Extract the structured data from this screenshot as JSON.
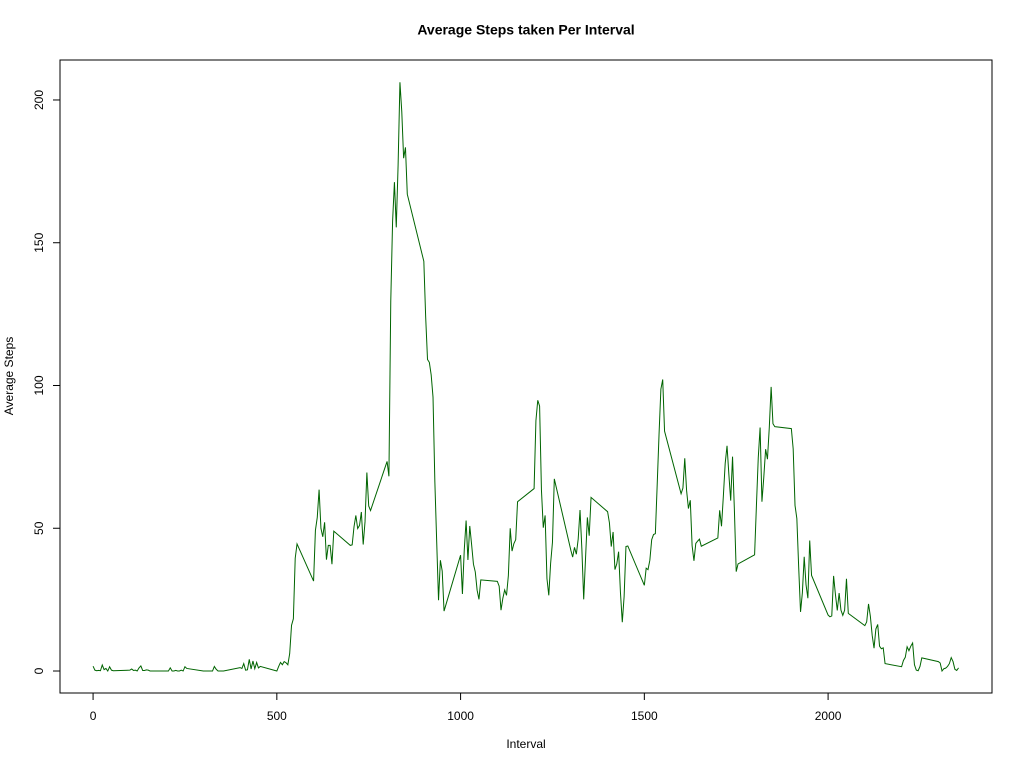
{
  "chart_data": {
    "type": "line",
    "title": "Average Steps taken Per Interval",
    "x_label": "Interval",
    "y_label": "Average Steps",
    "color": "#006400",
    "xlim": [
      -90,
      2446
    ],
    "ylim": [
      -7.7,
      214
    ],
    "xticks": [
      0,
      500,
      1000,
      1500,
      2000
    ],
    "yticks": [
      0,
      50,
      100,
      150,
      200
    ],
    "x": [
      0,
      5,
      10,
      15,
      20,
      25,
      30,
      35,
      40,
      45,
      50,
      55,
      100,
      105,
      110,
      115,
      120,
      125,
      130,
      135,
      140,
      145,
      150,
      155,
      200,
      205,
      210,
      215,
      220,
      225,
      230,
      235,
      240,
      245,
      250,
      255,
      300,
      305,
      310,
      315,
      320,
      325,
      330,
      335,
      340,
      345,
      350,
      355,
      400,
      405,
      410,
      415,
      420,
      425,
      430,
      435,
      440,
      445,
      450,
      455,
      500,
      505,
      510,
      515,
      520,
      525,
      530,
      535,
      540,
      545,
      550,
      555,
      600,
      605,
      610,
      615,
      620,
      625,
      630,
      635,
      640,
      645,
      650,
      655,
      700,
      705,
      710,
      715,
      720,
      725,
      730,
      735,
      740,
      745,
      750,
      755,
      800,
      805,
      810,
      815,
      820,
      825,
      830,
      835,
      840,
      845,
      850,
      855,
      900,
      905,
      910,
      915,
      920,
      925,
      930,
      935,
      940,
      945,
      950,
      955,
      1000,
      1005,
      1010,
      1015,
      1020,
      1025,
      1030,
      1035,
      1040,
      1045,
      1050,
      1055,
      1100,
      1105,
      1110,
      1115,
      1120,
      1125,
      1130,
      1135,
      1140,
      1145,
      1150,
      1155,
      1200,
      1205,
      1210,
      1215,
      1220,
      1225,
      1230,
      1235,
      1240,
      1245,
      1250,
      1255,
      1300,
      1305,
      1310,
      1315,
      1320,
      1325,
      1330,
      1335,
      1340,
      1345,
      1350,
      1355,
      1400,
      1405,
      1410,
      1415,
      1420,
      1425,
      1430,
      1435,
      1440,
      1445,
      1450,
      1455,
      1500,
      1505,
      1510,
      1515,
      1520,
      1525,
      1530,
      1535,
      1540,
      1545,
      1550,
      1555,
      1600,
      1605,
      1610,
      1615,
      1620,
      1625,
      1630,
      1635,
      1640,
      1645,
      1650,
      1655,
      1700,
      1705,
      1710,
      1715,
      1720,
      1725,
      1730,
      1735,
      1740,
      1745,
      1750,
      1755,
      1800,
      1805,
      1810,
      1815,
      1820,
      1825,
      1830,
      1835,
      1840,
      1845,
      1850,
      1855,
      1900,
      1905,
      1910,
      1915,
      1920,
      1925,
      1930,
      1935,
      1940,
      1945,
      1950,
      1955,
      2000,
      2005,
      2010,
      2015,
      2020,
      2025,
      2030,
      2035,
      2040,
      2045,
      2050,
      2055,
      2100,
      2105,
      2110,
      2115,
      2120,
      2125,
      2130,
      2135,
      2140,
      2145,
      2150,
      2155,
      2200,
      2205,
      2210,
      2215,
      2220,
      2225,
      2230,
      2235,
      2240,
      2245,
      2250,
      2255,
      2300,
      2305,
      2310,
      2315,
      2320,
      2325,
      2330,
      2335,
      2340,
      2345,
      2350,
      2355
    ],
    "values": [
      1.7,
      0.3,
      0.1,
      0.2,
      0.1,
      2.1,
      0.5,
      0.9,
      0,
      1.5,
      0.3,
      0.1,
      0.3,
      0.7,
      0.2,
      0.3,
      0,
      1.1,
      1.8,
      0.2,
      0.2,
      0.4,
      0.3,
      0,
      0,
      0,
      1.1,
      0,
      0,
      0.2,
      0,
      0,
      0.3,
      0,
      1.5,
      0.9,
      0,
      0,
      0,
      0,
      0,
      0,
      1.6,
      0.6,
      0,
      0,
      0,
      0,
      1.2,
      0.9,
      2.6,
      0.3,
      0.4,
      4.1,
      0.7,
      3.5,
      0.8,
      3.0,
      1.1,
      1.6,
      0,
      1.6,
      3.0,
      2.2,
      3.3,
      2.9,
      2.2,
      6.1,
      16,
      18.3,
      39.5,
      44.5,
      31.5,
      49.3,
      53.8,
      63.5,
      50,
      47,
      52.1,
      39,
      44,
      44,
      37.4,
      49,
      44,
      44.2,
      50.5,
      54.5,
      49.9,
      51,
      55.7,
      44.3,
      52.3,
      69.5,
      57.8,
      56.2,
      73.4,
      68.2,
      129.4,
      157.5,
      171.2,
      155.4,
      177.3,
      206.2,
      195.9,
      179.6,
      183.4,
      167,
      143.5,
      124,
      109.1,
      108.1,
      103.7,
      95.9,
      66.2,
      45.2,
      24.8,
      38.8,
      35,
      21,
      40.6,
      27,
      42.4,
      52.7,
      38.9,
      50.8,
      44.3,
      37.4,
      34.7,
      28.3,
      25.1,
      31.9,
      31.4,
      29.7,
      21.3,
      25.5,
      28.4,
      26.5,
      33.4,
      50,
      42,
      44.6,
      46,
      59.3,
      63.9,
      87.7,
      94.8,
      92.8,
      63.4,
      50.2,
      54.5,
      32.4,
      26.5,
      37.7,
      45.1,
      67.3,
      42.3,
      39.9,
      43.3,
      40.9,
      46.2,
      56.4,
      42.8,
      25.1,
      39.5,
      53.8,
      47.4,
      60.8,
      55.8,
      51.9,
      43.6,
      48.7,
      35.5,
      37.5,
      41.8,
      27.5,
      17.1,
      26.1,
      43.6,
      43.8,
      30,
      36,
      35.5,
      38.8,
      46,
      47.8,
      48.1,
      65.3,
      82.9,
      98.7,
      102.1,
      84,
      62.1,
      64.1,
      74.5,
      63.2,
      56.9,
      59.8,
      43.9,
      38.6,
      44.7,
      45.5,
      46.2,
      43.7,
      46.6,
      56.3,
      50.7,
      61.2,
      72.7,
      78.9,
      68.9,
      59.7,
      75.1,
      56.5,
      34.8,
      37.5,
      40.7,
      58,
      74.7,
      85.3,
      59.3,
      67.8,
      77.7,
      74.2,
      85.3,
      99.5,
      86.6,
      85.6,
      84.9,
      77.8,
      58,
      53.4,
      36.3,
      20.7,
      27.4,
      40,
      30.2,
      25.5,
      45.7,
      33.5,
      19.6,
      19,
      19.3,
      33.3,
      26.8,
      21.2,
      27.3,
      21.3,
      19.5,
      21.3,
      32.3,
      20.2,
      15.9,
      17.2,
      23.5,
      19.2,
      12.5,
      8,
      14.7,
      16.3,
      8.7,
      7.8,
      8.1,
      2.6,
      1.5,
      3.7,
      4.8,
      8.5,
      7.1,
      8.7,
      9.8,
      2.2,
      0.3,
      0.1,
      1.6,
      4.6,
      3.3,
      2.8,
      0,
      0.8,
      1,
      1.6,
      2.6,
      4.7,
      3.3,
      0.6,
      0.2,
      1.1
    ]
  }
}
